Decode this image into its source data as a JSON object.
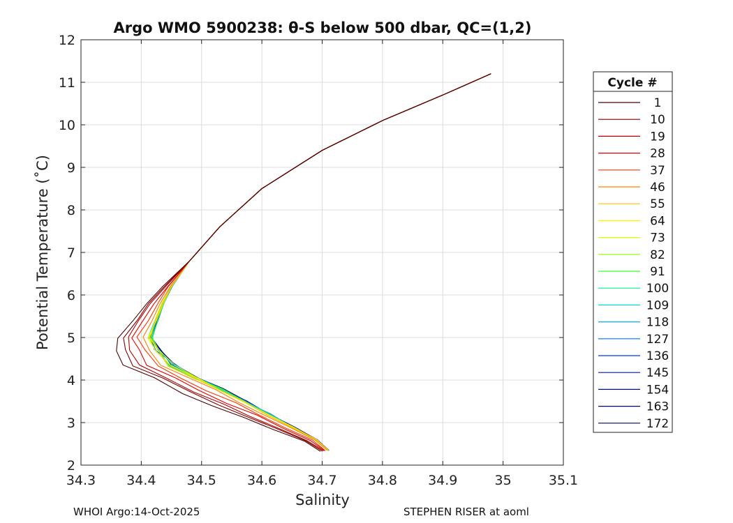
{
  "chart_data": {
    "type": "line",
    "title": "Argo WMO 5900238: θ-S below 500 dbar,  QC=(1,2)",
    "xlabel": "Salinity",
    "ylabel": "Potential Temperature (˚C)",
    "xlim": [
      34.3,
      35.1
    ],
    "ylim": [
      2,
      12
    ],
    "xticks": [
      34.3,
      34.4,
      34.5,
      34.6,
      34.7,
      34.8,
      34.9,
      35,
      35.1
    ],
    "xtick_labels": [
      "34.3",
      "34.4",
      "34.5",
      "34.6",
      "34.7",
      "34.8",
      "34.9",
      "35",
      "35.1"
    ],
    "yticks": [
      2,
      3,
      4,
      5,
      6,
      7,
      8,
      9,
      10,
      11,
      12
    ],
    "ytick_labels": [
      "2",
      "3",
      "4",
      "5",
      "6",
      "7",
      "8",
      "9",
      "10",
      "11",
      "12"
    ],
    "grid": true,
    "legend": {
      "title": "Cycle #",
      "placement": "right-outside",
      "entries": [
        {
          "label": "1",
          "color": "#4d0000"
        },
        {
          "label": "10",
          "color": "#7a0000"
        },
        {
          "label": "19",
          "color": "#b30000"
        },
        {
          "label": "28",
          "color": "#e00000"
        },
        {
          "label": "37",
          "color": "#ff3300"
        },
        {
          "label": "46",
          "color": "#ff8000"
        },
        {
          "label": "55",
          "color": "#ffbf00"
        },
        {
          "label": "64",
          "color": "#ffee00"
        },
        {
          "label": "73",
          "color": "#d4ff00"
        },
        {
          "label": "82",
          "color": "#8cff00"
        },
        {
          "label": "91",
          "color": "#33ff33"
        },
        {
          "label": "100",
          "color": "#00f08c"
        },
        {
          "label": "109",
          "color": "#00e0d0"
        },
        {
          "label": "118",
          "color": "#00b0f0"
        },
        {
          "label": "127",
          "color": "#0070ff"
        },
        {
          "label": "136",
          "color": "#0030f0"
        },
        {
          "label": "145",
          "color": "#0010c8"
        },
        {
          "label": "154",
          "color": "#000c96"
        },
        {
          "label": "163",
          "color": "#000870"
        },
        {
          "label": "172",
          "color": "#000550"
        }
      ]
    },
    "series_shape": {
      "s": [
        34.71,
        34.69,
        34.65,
        34.61,
        34.57,
        34.53,
        34.49,
        34.45,
        34.425,
        34.415,
        34.425,
        34.435,
        34.45,
        34.48,
        34.53,
        34.6,
        34.7,
        34.8,
        34.9,
        34.98
      ],
      "t": [
        2.35,
        2.6,
        2.9,
        3.2,
        3.5,
        3.8,
        4.05,
        4.35,
        4.7,
        5.0,
        5.4,
        5.8,
        6.2,
        6.8,
        7.6,
        8.5,
        9.4,
        10.1,
        10.7,
        11.2
      ]
    },
    "footer_left": "WHOI Argo:14-Oct-2025",
    "footer_right": "STEPHEN RISER at aoml"
  }
}
